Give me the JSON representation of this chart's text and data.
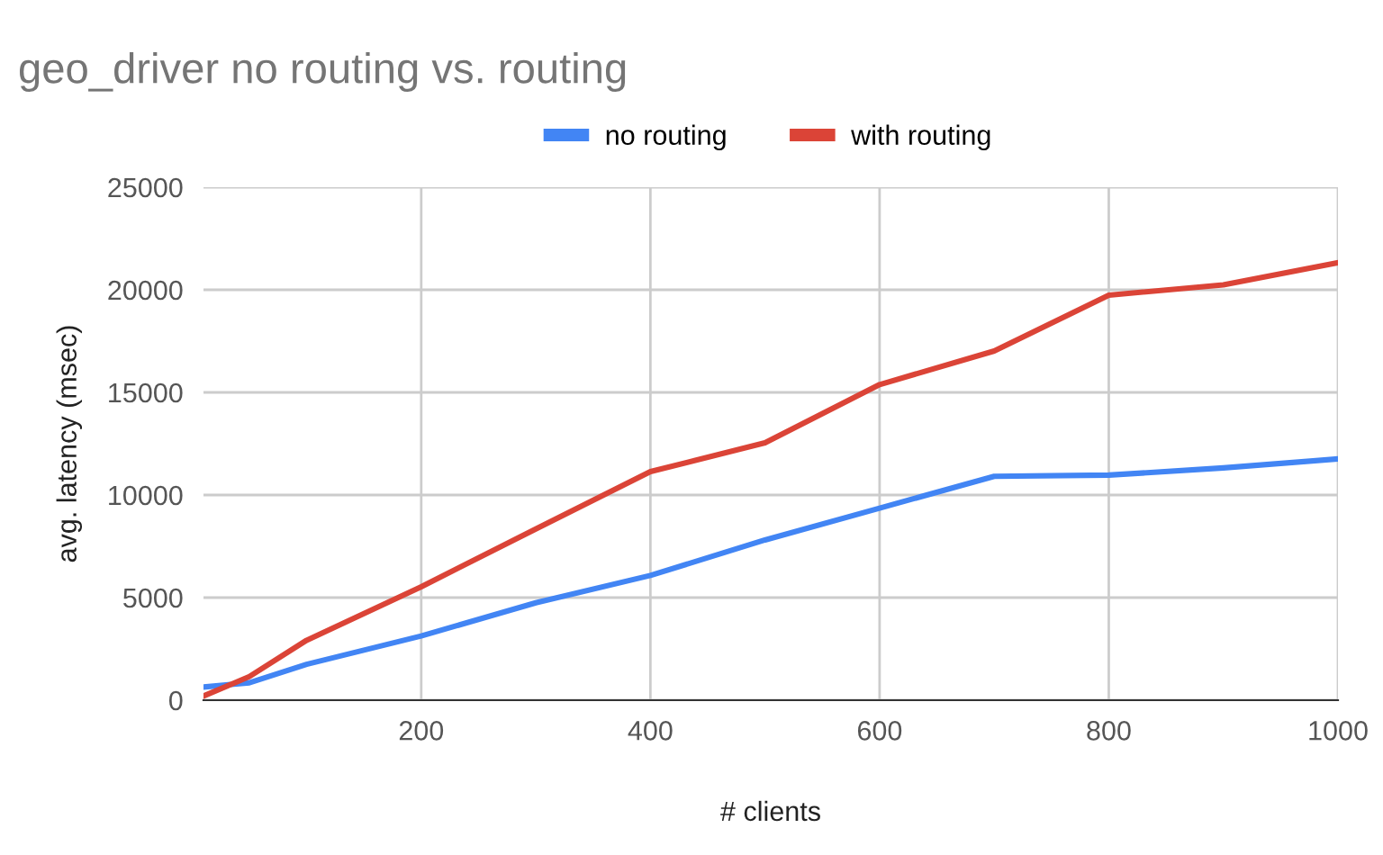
{
  "chart_data": {
    "type": "line",
    "title": "geo_driver no routing vs. routing",
    "xlabel": "# clients",
    "ylabel": "avg. latency (msec)",
    "x": [
      10,
      50,
      100,
      200,
      300,
      400,
      500,
      600,
      700,
      800,
      900,
      1000
    ],
    "series": [
      {
        "name": "no routing",
        "color": "#4285f4",
        "values": [
          640,
          850,
          1750,
          3130,
          4750,
          6080,
          7810,
          9360,
          10910,
          10970,
          11320,
          11760
        ]
      },
      {
        "name": "with routing",
        "color": "#db4437",
        "values": [
          200,
          1150,
          2920,
          5530,
          8340,
          11140,
          12540,
          15380,
          17020,
          19740,
          20240,
          21320
        ]
      }
    ],
    "xlim": [
      10,
      1000
    ],
    "xticks": [
      200,
      400,
      600,
      800,
      1000
    ],
    "ylim": [
      0,
      25000
    ],
    "yticks": [
      0,
      5000,
      10000,
      15000,
      20000,
      25000
    ],
    "grid": true,
    "legend": "top",
    "marker": "none",
    "line_style": "solid"
  }
}
